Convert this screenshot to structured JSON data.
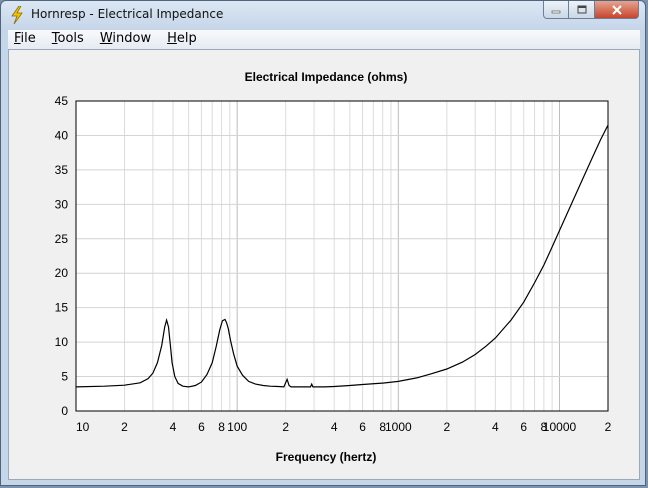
{
  "window": {
    "title": "Hornresp - Electrical Impedance"
  },
  "menu": [
    {
      "key": "F",
      "rest": "ile"
    },
    {
      "key": "T",
      "rest": "ools"
    },
    {
      "key": "W",
      "rest": "indow"
    },
    {
      "key": "H",
      "rest": "elp"
    }
  ],
  "icons": {
    "app": "lightning-bolt-icon",
    "minimize": "minimize-icon",
    "maximize": "maximize-icon",
    "close": "close-icon"
  },
  "colors": {
    "accent": "#f2c500",
    "curve": "#000000",
    "grid": "#d4d4d4",
    "plot_bg": "#ffffff"
  },
  "chart_data": {
    "type": "line",
    "title": "Electrical Impedance (ohms)",
    "xlabel": "Frequency (hertz)",
    "ylabel": "",
    "xscale": "log",
    "xlim": [
      10,
      20000
    ],
    "ylim": [
      0,
      45
    ],
    "grid": true,
    "yticks": [
      0,
      5,
      10,
      15,
      20,
      25,
      30,
      35,
      40,
      45
    ],
    "xtick_labels": [
      {
        "value": 10,
        "label": "10"
      },
      {
        "value": 20,
        "label": "2"
      },
      {
        "value": 40,
        "label": "4"
      },
      {
        "value": 60,
        "label": "6"
      },
      {
        "value": 80,
        "label": "8"
      },
      {
        "value": 100,
        "label": "100"
      },
      {
        "value": 200,
        "label": "2"
      },
      {
        "value": 400,
        "label": "4"
      },
      {
        "value": 600,
        "label": "6"
      },
      {
        "value": 800,
        "label": "8"
      },
      {
        "value": 1000,
        "label": "1000"
      },
      {
        "value": 2000,
        "label": "2"
      },
      {
        "value": 4000,
        "label": "4"
      },
      {
        "value": 6000,
        "label": "6"
      },
      {
        "value": 8000,
        "label": "8"
      },
      {
        "value": 10000,
        "label": "10000"
      },
      {
        "value": 20000,
        "label": "2"
      }
    ],
    "series": [
      {
        "x": [
          10,
          15,
          20,
          25,
          28,
          30,
          32,
          34,
          35.5,
          36.5,
          37.5,
          38.5,
          39.5,
          41,
          43,
          46,
          50,
          55,
          60,
          65,
          70,
          74,
          78,
          81,
          84,
          86,
          88,
          91,
          95,
          100,
          108,
          118,
          130,
          145,
          160,
          180,
          195,
          204,
          210,
          216,
          222,
          232,
          250,
          270,
          285,
          290,
          295,
          300,
          315,
          350,
          400,
          500,
          600,
          800,
          1000,
          1300,
          1600,
          2000,
          2500,
          3000,
          3500,
          4000,
          5000,
          6000,
          7000,
          8000,
          9000,
          10000,
          12000,
          14000,
          16000,
          18000,
          20000
        ],
        "y": [
          3.5,
          3.6,
          3.75,
          4.1,
          4.7,
          5.5,
          7.0,
          9.5,
          12.2,
          13.2,
          12.2,
          9.5,
          7.0,
          5.0,
          4.0,
          3.6,
          3.5,
          3.7,
          4.2,
          5.3,
          7.0,
          9.3,
          11.8,
          13.1,
          13.3,
          12.8,
          12.0,
          10.2,
          8.3,
          6.5,
          5.2,
          4.3,
          3.9,
          3.7,
          3.6,
          3.55,
          3.5,
          4.6,
          3.7,
          3.5,
          3.5,
          3.5,
          3.5,
          3.5,
          3.5,
          3.9,
          3.5,
          3.5,
          3.5,
          3.5,
          3.55,
          3.7,
          3.85,
          4.05,
          4.3,
          4.8,
          5.4,
          6.1,
          7.1,
          8.2,
          9.4,
          10.6,
          13.2,
          15.8,
          18.6,
          21.2,
          23.8,
          26.2,
          30.3,
          33.8,
          36.8,
          39.4,
          41.5
        ]
      }
    ]
  }
}
